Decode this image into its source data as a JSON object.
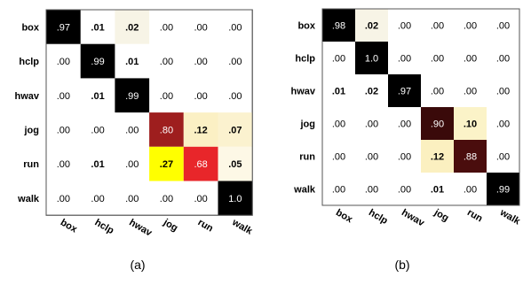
{
  "chart_data": [
    {
      "type": "heatmap",
      "panel_label": "(a)",
      "rows": [
        "box",
        "hclp",
        "hwav",
        "jog",
        "run",
        "walk"
      ],
      "cols": [
        "box",
        "hclp",
        "hwav",
        "jog",
        "run",
        "walk"
      ],
      "values": [
        [
          0.97,
          0.01,
          0.02,
          0.0,
          0.0,
          0.0
        ],
        [
          0.0,
          0.99,
          0.01,
          0.0,
          0.0,
          0.0
        ],
        [
          0.0,
          0.01,
          0.99,
          0.0,
          0.0,
          0.0
        ],
        [
          0.0,
          0.0,
          0.0,
          0.8,
          0.12,
          0.07
        ],
        [
          0.0,
          0.01,
          0.0,
          0.27,
          0.68,
          0.05
        ],
        [
          0.0,
          0.0,
          0.0,
          0.0,
          0.0,
          1.0
        ]
      ],
      "labels": [
        [
          ".97",
          ".01",
          ".02",
          ".00",
          ".00",
          ".00"
        ],
        [
          ".00",
          ".99",
          ".01",
          ".00",
          ".00",
          ".00"
        ],
        [
          ".00",
          ".01",
          ".99",
          ".00",
          ".00",
          ".00"
        ],
        [
          ".00",
          ".00",
          ".00",
          ".80",
          ".12",
          ".07"
        ],
        [
          ".00",
          ".01",
          ".00",
          ".27",
          ".68",
          ".05"
        ],
        [
          ".00",
          ".00",
          ".00",
          ".00",
          ".00",
          "1.0"
        ]
      ],
      "colors": [
        [
          "#000000",
          "#ffffff",
          "#f7f4e6",
          "#ffffff",
          "#ffffff",
          "#ffffff"
        ],
        [
          "#ffffff",
          "#000000",
          "#ffffff",
          "#ffffff",
          "#ffffff",
          "#ffffff"
        ],
        [
          "#ffffff",
          "#ffffff",
          "#000000",
          "#ffffff",
          "#ffffff",
          "#ffffff"
        ],
        [
          "#ffffff",
          "#ffffff",
          "#ffffff",
          "#9e1e1e",
          "#fbf0c4",
          "#fbf2cf"
        ],
        [
          "#ffffff",
          "#ffffff",
          "#ffffff",
          "#ffff00",
          "#e8262a",
          "#fdf8e6"
        ],
        [
          "#ffffff",
          "#ffffff",
          "#ffffff",
          "#ffffff",
          "#ffffff",
          "#000000"
        ]
      ],
      "text_colors": [
        [
          "#ffffff",
          "#000000",
          "#000000",
          "#000000",
          "#000000",
          "#000000"
        ],
        [
          "#000000",
          "#ffffff",
          "#000000",
          "#000000",
          "#000000",
          "#000000"
        ],
        [
          "#000000",
          "#000000",
          "#ffffff",
          "#000000",
          "#000000",
          "#000000"
        ],
        [
          "#000000",
          "#000000",
          "#000000",
          "#ffffff",
          "#000000",
          "#000000"
        ],
        [
          "#000000",
          "#000000",
          "#000000",
          "#000000",
          "#ffffff",
          "#000000"
        ],
        [
          "#000000",
          "#000000",
          "#000000",
          "#000000",
          "#000000",
          "#ffffff"
        ]
      ],
      "bold": [
        [
          false,
          true,
          true,
          false,
          false,
          false
        ],
        [
          false,
          false,
          true,
          false,
          false,
          false
        ],
        [
          false,
          true,
          false,
          false,
          false,
          false
        ],
        [
          false,
          false,
          false,
          false,
          true,
          true
        ],
        [
          false,
          true,
          false,
          true,
          false,
          true
        ],
        [
          false,
          false,
          false,
          false,
          false,
          false
        ]
      ],
      "grid": false,
      "legend": "none"
    },
    {
      "type": "heatmap",
      "panel_label": "(b)",
      "rows": [
        "box",
        "hclp",
        "hwav",
        "jog",
        "run",
        "walk"
      ],
      "cols": [
        "box",
        "hclp",
        "hwav",
        "jog",
        "run",
        "walk"
      ],
      "values": [
        [
          0.98,
          0.02,
          0.0,
          0.0,
          0.0,
          0.0
        ],
        [
          0.0,
          1.0,
          0.0,
          0.0,
          0.0,
          0.0
        ],
        [
          0.01,
          0.02,
          0.97,
          0.0,
          0.0,
          0.0
        ],
        [
          0.0,
          0.0,
          0.0,
          0.9,
          0.1,
          0.0
        ],
        [
          0.0,
          0.0,
          0.0,
          0.12,
          0.88,
          0.0
        ],
        [
          0.0,
          0.0,
          0.0,
          0.01,
          0.0,
          0.99
        ]
      ],
      "labels": [
        [
          ".98",
          ".02",
          ".00",
          ".00",
          ".00",
          ".00"
        ],
        [
          ".00",
          "1.0",
          ".00",
          ".00",
          ".00",
          ".00"
        ],
        [
          ".01",
          ".02",
          ".97",
          ".00",
          ".00",
          ".00"
        ],
        [
          ".00",
          ".00",
          ".00",
          ".90",
          ".10",
          ".00"
        ],
        [
          ".00",
          ".00",
          ".00",
          ".12",
          ".88",
          ".00"
        ],
        [
          ".00",
          ".00",
          ".00",
          ".01",
          ".00",
          ".99"
        ]
      ],
      "colors": [
        [
          "#000000",
          "#f7f4e6",
          "#ffffff",
          "#ffffff",
          "#ffffff",
          "#ffffff"
        ],
        [
          "#ffffff",
          "#000000",
          "#ffffff",
          "#ffffff",
          "#ffffff",
          "#ffffff"
        ],
        [
          "#ffffff",
          "#ffffff",
          "#000000",
          "#ffffff",
          "#ffffff",
          "#ffffff"
        ],
        [
          "#ffffff",
          "#ffffff",
          "#ffffff",
          "#3a0a0a",
          "#fbf3c8",
          "#ffffff"
        ],
        [
          "#ffffff",
          "#ffffff",
          "#ffffff",
          "#fbf0c0",
          "#4a0d0d",
          "#ffffff"
        ],
        [
          "#ffffff",
          "#ffffff",
          "#ffffff",
          "#ffffff",
          "#ffffff",
          "#000000"
        ]
      ],
      "text_colors": [
        [
          "#ffffff",
          "#000000",
          "#000000",
          "#000000",
          "#000000",
          "#000000"
        ],
        [
          "#000000",
          "#ffffff",
          "#000000",
          "#000000",
          "#000000",
          "#000000"
        ],
        [
          "#000000",
          "#000000",
          "#ffffff",
          "#000000",
          "#000000",
          "#000000"
        ],
        [
          "#000000",
          "#000000",
          "#000000",
          "#ffffff",
          "#000000",
          "#000000"
        ],
        [
          "#000000",
          "#000000",
          "#000000",
          "#000000",
          "#ffffff",
          "#000000"
        ],
        [
          "#000000",
          "#000000",
          "#000000",
          "#000000",
          "#000000",
          "#ffffff"
        ]
      ],
      "bold": [
        [
          false,
          true,
          false,
          false,
          false,
          false
        ],
        [
          false,
          false,
          false,
          false,
          false,
          false
        ],
        [
          true,
          true,
          false,
          false,
          false,
          false
        ],
        [
          false,
          false,
          false,
          false,
          true,
          false
        ],
        [
          false,
          false,
          false,
          true,
          false,
          false
        ],
        [
          false,
          false,
          false,
          true,
          false,
          false
        ]
      ],
      "grid": false,
      "legend": "none"
    }
  ]
}
